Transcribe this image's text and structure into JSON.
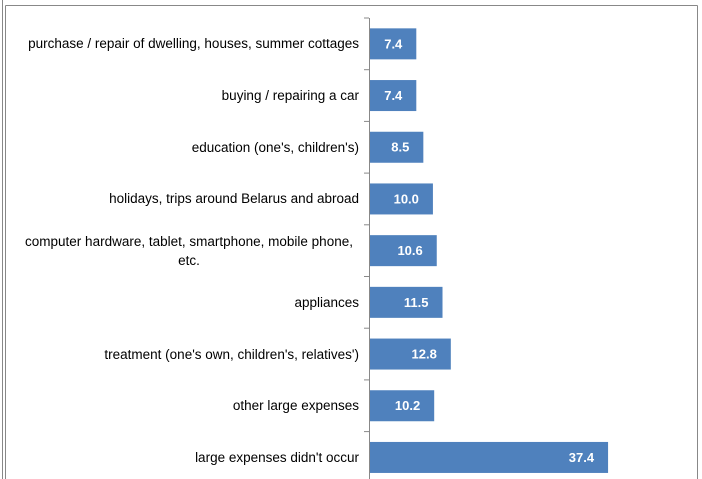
{
  "chart_data": {
    "type": "hbar",
    "categories": [
      "purchase / repair of dwelling, houses, summer cottages",
      "buying / repairing a car",
      "education (one's, children's)",
      "holidays, trips around Belarus and abroad",
      "computer hardware, tablet, smartphone, mobile phone, etc.",
      "appliances",
      "treatment (one's own, children's, relatives')",
      "other large expenses",
      "large expenses didn't occur"
    ],
    "values": [
      7.4,
      7.4,
      8.5,
      10.0,
      10.6,
      11.5,
      12.8,
      10.2,
      37.4
    ],
    "value_labels": [
      "7.4",
      "7.4",
      "8.5",
      "10.0",
      "10.6",
      "11.5",
      "12.8",
      "10.2",
      "37.4"
    ],
    "color": "#4f81bd",
    "xlim": [
      0,
      51
    ]
  }
}
